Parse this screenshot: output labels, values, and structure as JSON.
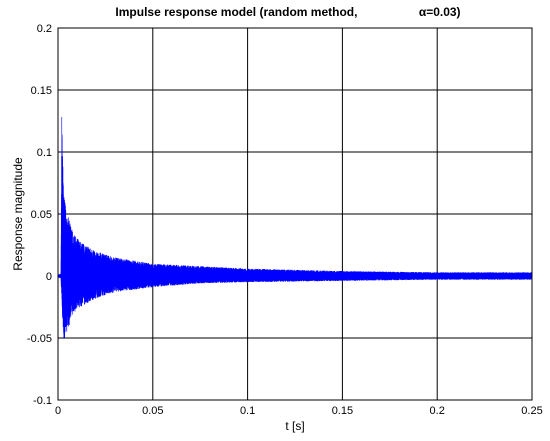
{
  "chart_data": {
    "type": "line",
    "title_main": "Impulse response model (random method,",
    "title_param": "α=0.03)",
    "xlabel": "t [s]",
    "ylabel": "Response magnitude",
    "xlim": [
      0,
      0.25
    ],
    "ylim": [
      -0.1,
      0.2
    ],
    "xticks": [
      0,
      0.05,
      0.1,
      0.15,
      0.2,
      0.25
    ],
    "xtick_labels": [
      "0",
      "0.05",
      "0.1",
      "0.15",
      "0.2",
      "0.25"
    ],
    "yticks": [
      -0.1,
      -0.05,
      0,
      0.05,
      0.1,
      0.15,
      0.2
    ],
    "ytick_labels": [
      "-0.1",
      "-0.05",
      "0",
      "0.05",
      "0.1",
      "0.15",
      "0.2"
    ],
    "grid": true,
    "series": [
      {
        "color": "#0000ff",
        "envelope": {
          "t": [
            0,
            0.0015,
            0.002,
            0.0025,
            0.003,
            0.005,
            0.008,
            0.012,
            0.02,
            0.03,
            0.05,
            0.075,
            0.1,
            0.15,
            0.2,
            0.25
          ],
          "upper": [
            0.001,
            0.002,
            0.135,
            0.1,
            0.065,
            0.05,
            0.035,
            0.027,
            0.02,
            0.015,
            0.01,
            0.008,
            0.006,
            0.004,
            0.003,
            0.003
          ],
          "lower": [
            -0.001,
            -0.002,
            -0.02,
            -0.04,
            -0.053,
            -0.045,
            -0.03,
            -0.025,
            -0.018,
            -0.013,
            -0.009,
            -0.006,
            -0.005,
            -0.004,
            -0.003,
            -0.003
          ]
        }
      }
    ]
  }
}
